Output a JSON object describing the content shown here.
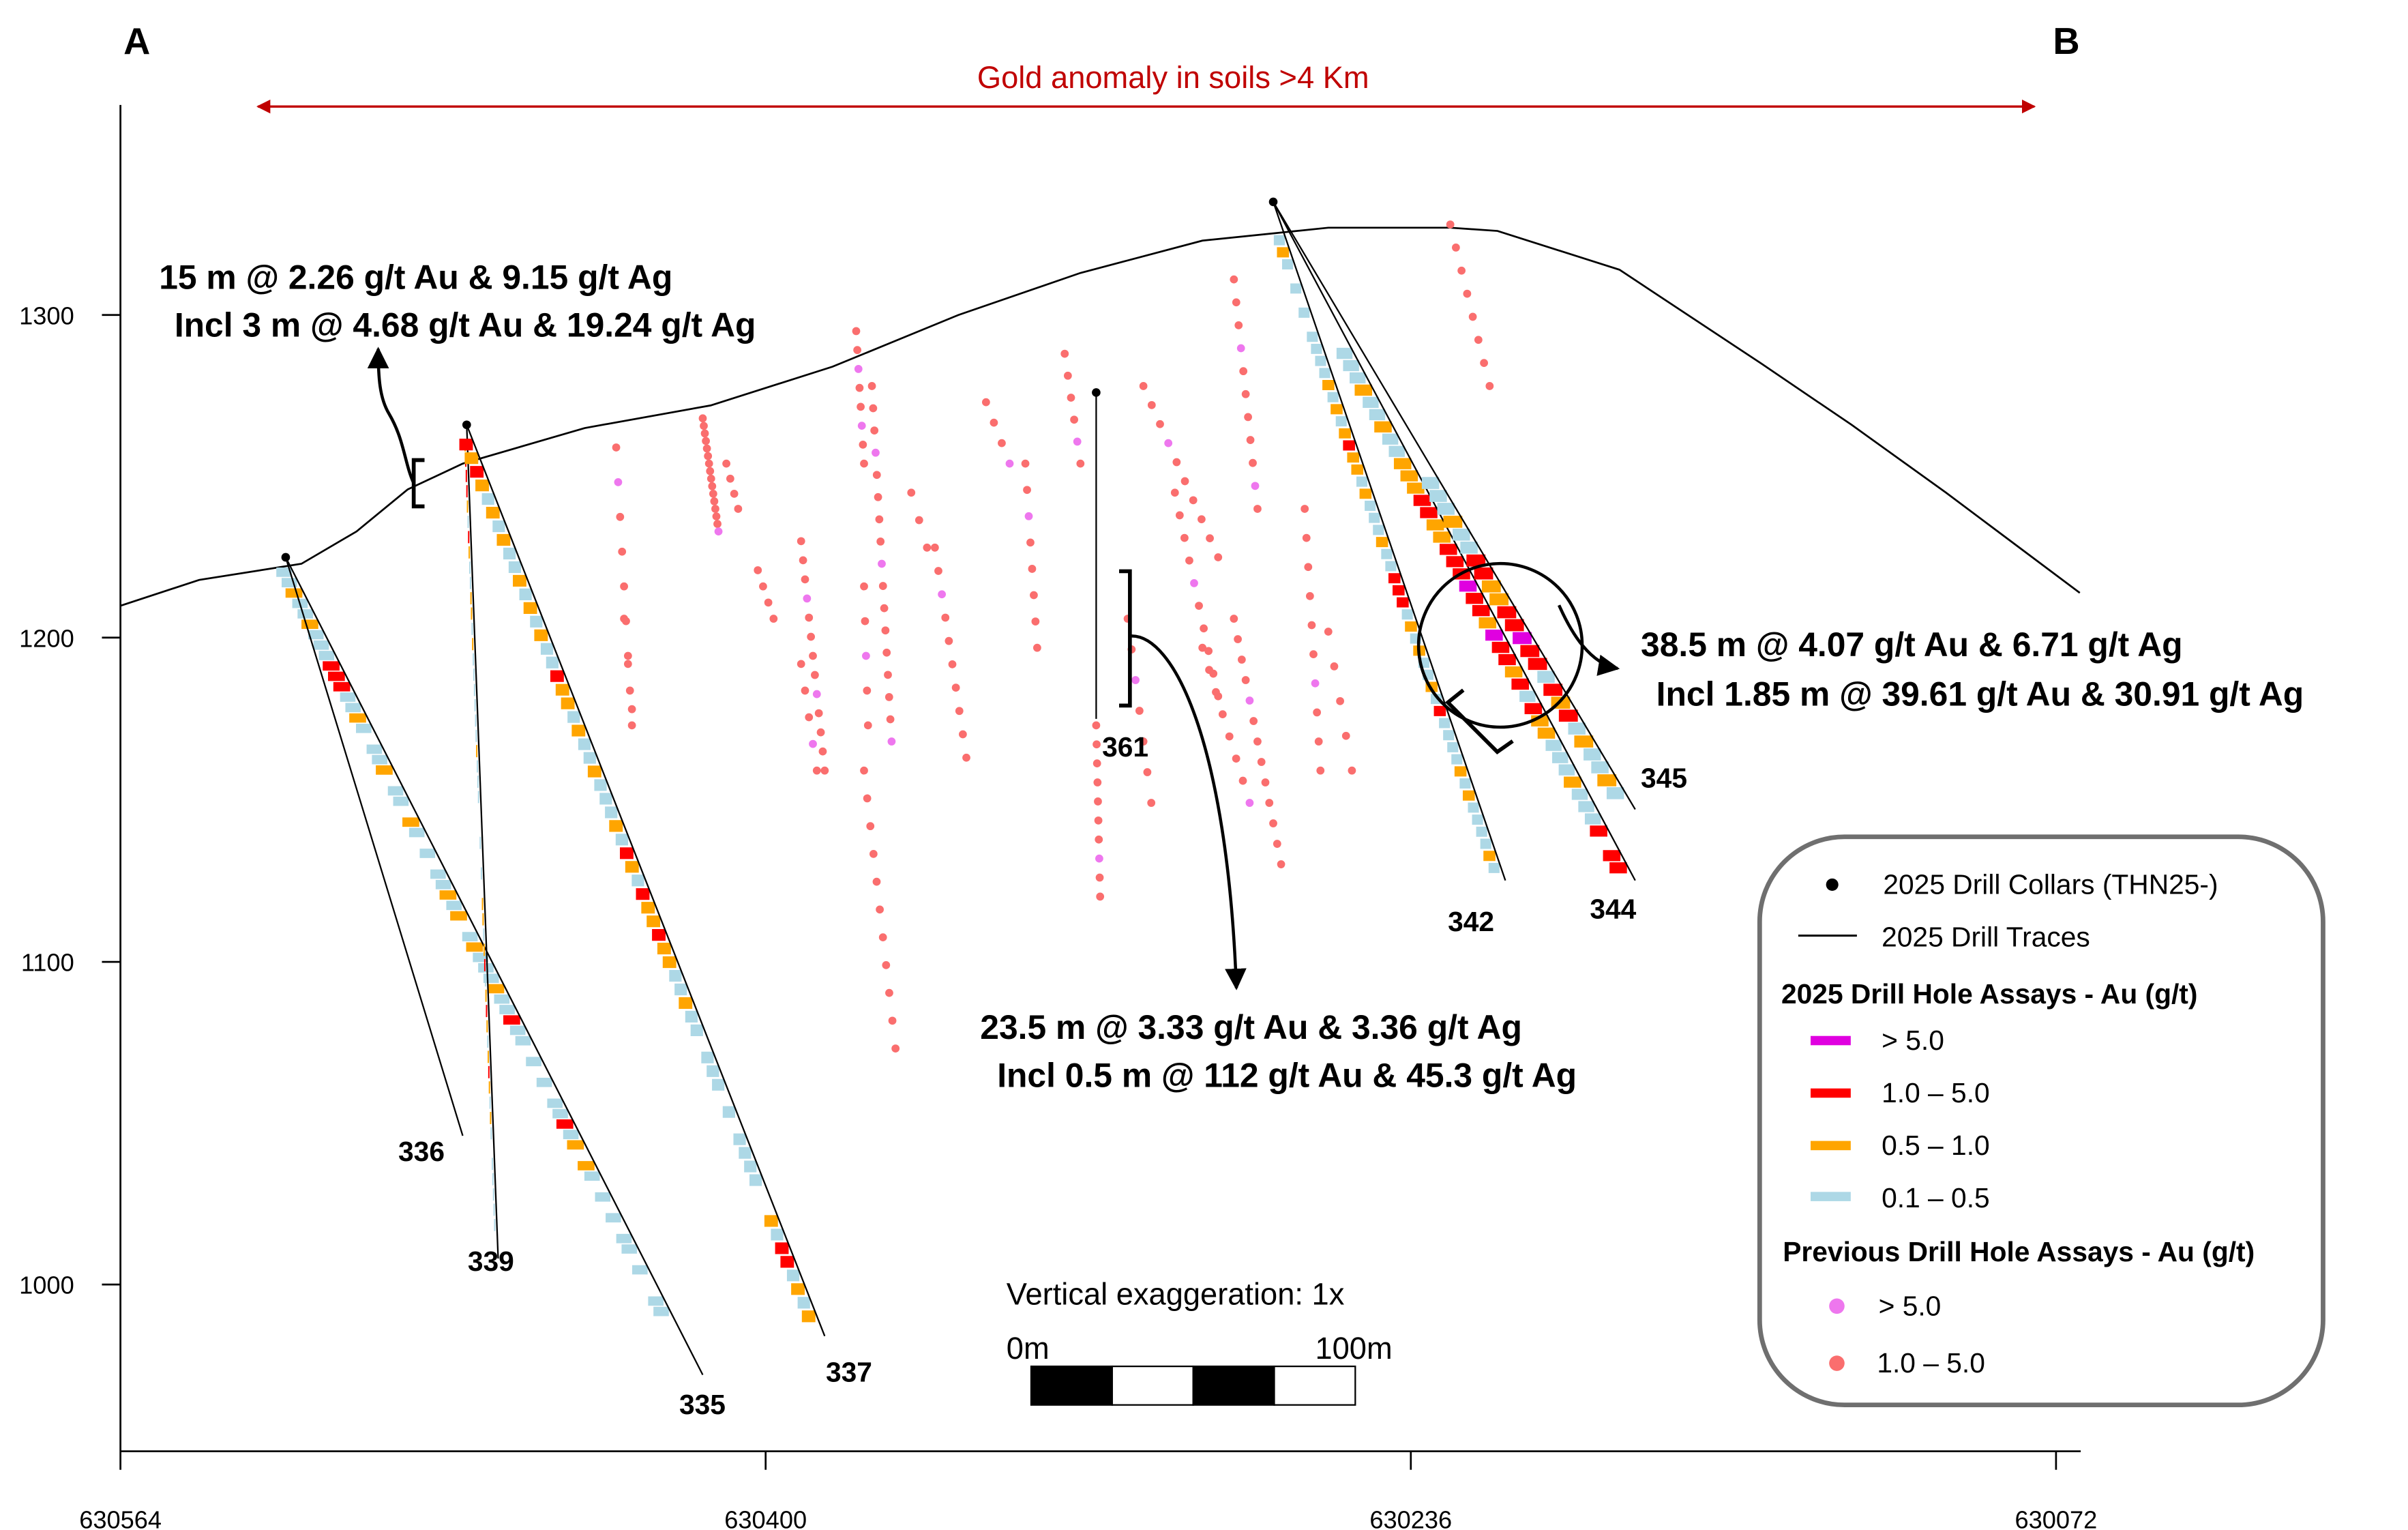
{
  "section": {
    "start_label": "A",
    "end_label": "B",
    "anomaly_label": "Gold anomaly in soils  >4 Km",
    "anomaly_color": "#c00000",
    "vertical_exaggeration": "Vertical exaggeration: 1x",
    "scale_bar": {
      "start": "0m",
      "end": "100m"
    }
  },
  "annotations": [
    {
      "line1": "15 m @ 2.26 g/t Au & 9.15 g/t Ag",
      "line2": "Incl 3 m @  4.68 g/t Au & 19.24 g/t Ag"
    },
    {
      "line1": "23.5 m @ 3.33 g/t Au & 3.36 g/t Ag",
      "line2": "Incl 0.5 m @ 112 g/t Au & 45.3 g/t Ag"
    },
    {
      "line1": "38.5 m @ 4.07 g/t Au & 6.71 g/t Ag",
      "line2": "Incl 1.85 m @  39.61 g/t Au & 30.91 g/t Ag"
    }
  ],
  "legend": {
    "collars": "2025 Drill Collars (THN25-)",
    "traces": "2025 Drill Traces",
    "heading_2025": "2025 Drill Hole Assays - Au (g/t)",
    "classes_2025": [
      {
        "label": "> 5.0",
        "color": "#e000e0"
      },
      {
        "label": "1.0 – 5.0",
        "color": "#ff0000"
      },
      {
        "label": "0.5 – 1.0",
        "color": "#ffa500"
      },
      {
        "label": "0.1 – 0.5",
        "color": "#add8e6"
      }
    ],
    "heading_previous": "Previous Drill Hole Assays - Au (g/t)",
    "classes_previous": [
      {
        "label": "> 5.0",
        "color": "#ee77ee"
      },
      {
        "label": "1.0 – 5.0",
        "color": "#fa6e6e"
      }
    ]
  },
  "chart_data": {
    "type": "cross-section",
    "x_ticks": [
      "630564",
      "630400",
      "630236",
      "630072"
    ],
    "y_ticks": [
      "1300",
      "1200",
      "1100",
      "1000"
    ],
    "xlim": [
      630564,
      630066
    ],
    "ylim": [
      950,
      1360
    ],
    "topography": [
      [
        630564,
        1210
      ],
      [
        630544,
        1218
      ],
      [
        630518,
        1223
      ],
      [
        630504,
        1233
      ],
      [
        630491,
        1246
      ],
      [
        630477,
        1254
      ],
      [
        630446,
        1265
      ],
      [
        630414,
        1272
      ],
      [
        630383,
        1284
      ],
      [
        630351,
        1300
      ],
      [
        630320,
        1313
      ],
      [
        630289,
        1323
      ],
      [
        630257,
        1327
      ],
      [
        630226,
        1327
      ],
      [
        630214,
        1326
      ],
      [
        630183,
        1314
      ],
      [
        630147,
        1285
      ],
      [
        630124,
        1266
      ],
      [
        630100,
        1245
      ],
      [
        630066,
        1214
      ]
    ],
    "drill_holes_2025": [
      {
        "id": "335",
        "collar": [
          630522,
          1225
        ],
        "end": [
          630416,
          972
        ],
        "band": [
          1222,
          990
        ],
        "assays": "bbobbobbbrrrbbob bbo bb ob b bbobo bobbbobbrbb b b bbrbo ob b b bb b  bb"
      },
      {
        "id": "336",
        "collar": [
          630522,
          1225
        ],
        "end": [
          630477,
          1046
        ],
        "band": null,
        "assays": ""
      },
      {
        "id": "339",
        "collar": [
          630476,
          1266
        ],
        "end": [
          630468,
          1008
        ],
        "band": [
          1262,
          1016
        ],
        "assays": "orrrobrobboobobbbbbbobbb  b b ooborboroborobob bbbbb"
      },
      {
        "id": "337",
        "collar": [
          630476,
          1266
        ],
        "end": [
          630385,
          984
        ],
        "band": [
          1262,
          988
        ],
        "assays": "rorobobobbobobobbroobobbobbbobrobrooroobbobb bbb b bbbb  obrrbobo"
      },
      {
        "id": "361",
        "collar": [
          630316,
          1276
        ],
        "end": [
          630316,
          1175
        ],
        "band": [
          1272,
          1175
        ],
        "assays": "bbbb bbobbooobrobbobormrrorbroormoobbob"
      },
      {
        "id": "342",
        "collar": [
          630271,
          1335
        ],
        "end": [
          630212,
          1125
        ],
        "band": [
          1325,
          1127
        ],
        "assays": "bob b b bbbboboboroobobbbobbrrrbobobbobrbbbbobobbbbob"
      },
      {
        "id": "344",
        "collar": [
          630271,
          1335
        ],
        "end": [
          630179,
          1125
        ],
        "band": [
          1290,
          1127
        ],
        "assays": "bbbobbobbooorroorrrmrromrrorbroobbbobbbr rr"
      },
      {
        "id": "345",
        "collar": [
          630271,
          1335
        ],
        "end": [
          630179,
          1147
        ],
        "band": [
          1250,
          1150
        ],
        "assays": "bbbobbrroorrmrrbrorbobbob"
      }
    ],
    "previous_holes": [
      {
        "from": [
          630416,
          1268
        ],
        "to": [
          630412,
          1233
        ],
        "dots": "rrrrrrrrrrrrrrrp"
      },
      {
        "from": [
          630410,
          1254
        ],
        "to": [
          630407,
          1240
        ],
        "dots": "rrrr"
      },
      {
        "from": [
          630402,
          1221
        ],
        "to": [
          630398,
          1206
        ],
        "dots": "rrrr"
      },
      {
        "from": [
          630391,
          1230
        ],
        "to": [
          630385,
          1159
        ],
        "dots": "rrrprrrrprrrr"
      },
      {
        "from": [
          630377,
          1295
        ],
        "to": [
          630375,
          1254
        ],
        "dots": "rrprrprr"
      },
      {
        "from": [
          630373,
          1278
        ],
        "to": [
          630368,
          1168
        ],
        "dots": "rrrprrrrprrrrrrrp"
      },
      {
        "from": [
          630375,
          1216
        ],
        "to": [
          630374,
          1173
        ],
        "dots": "rrprr"
      },
      {
        "from": [
          630363,
          1245
        ],
        "to": [
          630359,
          1228
        ],
        "dots": "rrr"
      },
      {
        "from": [
          630357,
          1228
        ],
        "to": [
          630349,
          1163
        ],
        "dots": "rrprrrrrrr"
      },
      {
        "from": [
          630344,
          1273
        ],
        "to": [
          630338,
          1254
        ],
        "dots": "rrrp"
      },
      {
        "from": [
          630334,
          1254
        ],
        "to": [
          630331,
          1197
        ],
        "dots": "rrprrrrr"
      },
      {
        "from": [
          630324,
          1288
        ],
        "to": [
          630320,
          1254
        ],
        "dots": "rrrrpr"
      },
      {
        "from": [
          630316,
          1173
        ],
        "to": [
          630315,
          1120
        ],
        "dots": "rrrrrrrprr"
      },
      {
        "from": [
          630304,
          1278
        ],
        "to": [
          630285,
          1225
        ],
        "dots": "rrrprrrrrr"
      },
      {
        "from": [
          630296,
          1245
        ],
        "to": [
          630285,
          1182
        ],
        "dots": "rrrrprrrrr"
      },
      {
        "from": [
          630281,
          1311
        ],
        "to": [
          630275,
          1240
        ],
        "dots": "rrrprrrrrpr"
      },
      {
        "from": [
          630281,
          1206
        ],
        "to": [
          630269,
          1130
        ],
        "dots": "rrrrprrrrrrrr"
      },
      {
        "from": [
          630289,
          1197
        ],
        "to": [
          630277,
          1149
        ],
        "dots": "rrrrrrrp"
      },
      {
        "from": [
          630263,
          1240
        ],
        "to": [
          630259,
          1159
        ],
        "dots": "rrrrrrprrr"
      },
      {
        "from": [
          630257,
          1202
        ],
        "to": [
          630251,
          1159
        ],
        "dots": "rrrrr"
      },
      {
        "from": [
          630226,
          1328
        ],
        "to": [
          630216,
          1278
        ],
        "dots": "rrrrrrrr"
      },
      {
        "from": [
          630438,
          1259
        ],
        "to": [
          630434,
          1173
        ],
        "dots": "rprrrrrrr"
      },
      {
        "from": [
          630375,
          1159
        ],
        "to": [
          630367,
          1073
        ],
        "dots": "rrrrrrrrrrr"
      },
      {
        "from": [
          630391,
          1192
        ],
        "to": [
          630387,
          1159
        ],
        "dots": "rrrpr"
      },
      {
        "from": [
          630308,
          1206
        ],
        "to": [
          630302,
          1149
        ],
        "dots": "rrprrrr"
      },
      {
        "from": [
          630436,
          1206
        ],
        "to": [
          630434,
          1178
        ],
        "dots": "rrr"
      }
    ]
  }
}
